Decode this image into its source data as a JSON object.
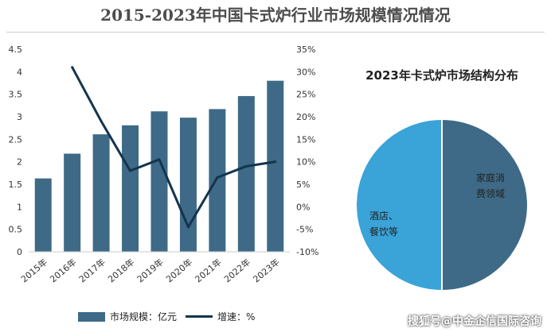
{
  "header": {
    "title": "2015-2023年中国卡式炉行业市场规模情况情况"
  },
  "watermark": "搜狐号@中金企信国际咨询",
  "colors": {
    "bar": "#3e6a87",
    "line": "#14344d",
    "pie_household": "#3e6a87",
    "pie_hotel": "#3aa3d8"
  },
  "chart_data": [
    {
      "type": "bar",
      "categories": [
        "2015年",
        "2016年",
        "2017年",
        "2018年",
        "2019年",
        "2020年",
        "2021年",
        "2022年",
        "2023年"
      ],
      "series": [
        {
          "name": "市场规模：亿元",
          "type": "bar",
          "axis": "left",
          "values": [
            1.63,
            2.18,
            2.61,
            2.81,
            3.12,
            2.98,
            3.17,
            3.46,
            3.8
          ]
        },
        {
          "name": "增速：%",
          "type": "line",
          "axis": "right",
          "values": [
            null,
            31,
            19,
            8,
            10.5,
            -4.5,
            6.5,
            9,
            10
          ]
        }
      ],
      "ylim_left": [
        0,
        4.5
      ],
      "yticks_left": [
        "0",
        "0.5",
        "1",
        "1.5",
        "2",
        "2.5",
        "3",
        "3.5",
        "4",
        "4.5"
      ],
      "ylim_right": [
        -10,
        35
      ],
      "yticks_right": [
        "-10%",
        "-5%",
        "0%",
        "5%",
        "10%",
        "15%",
        "20%",
        "25%",
        "30%",
        "35%"
      ],
      "grid": false,
      "legend": "bottom"
    },
    {
      "type": "pie",
      "title": "2023年卡式炉市场结构分布",
      "labels": [
        "家庭消费领域",
        "酒店、餐饮等"
      ],
      "label_lines": [
        [
          "家庭消",
          "费领域"
        ],
        [
          "酒店、",
          "餐饮等"
        ]
      ],
      "values": [
        50,
        50
      ]
    }
  ]
}
